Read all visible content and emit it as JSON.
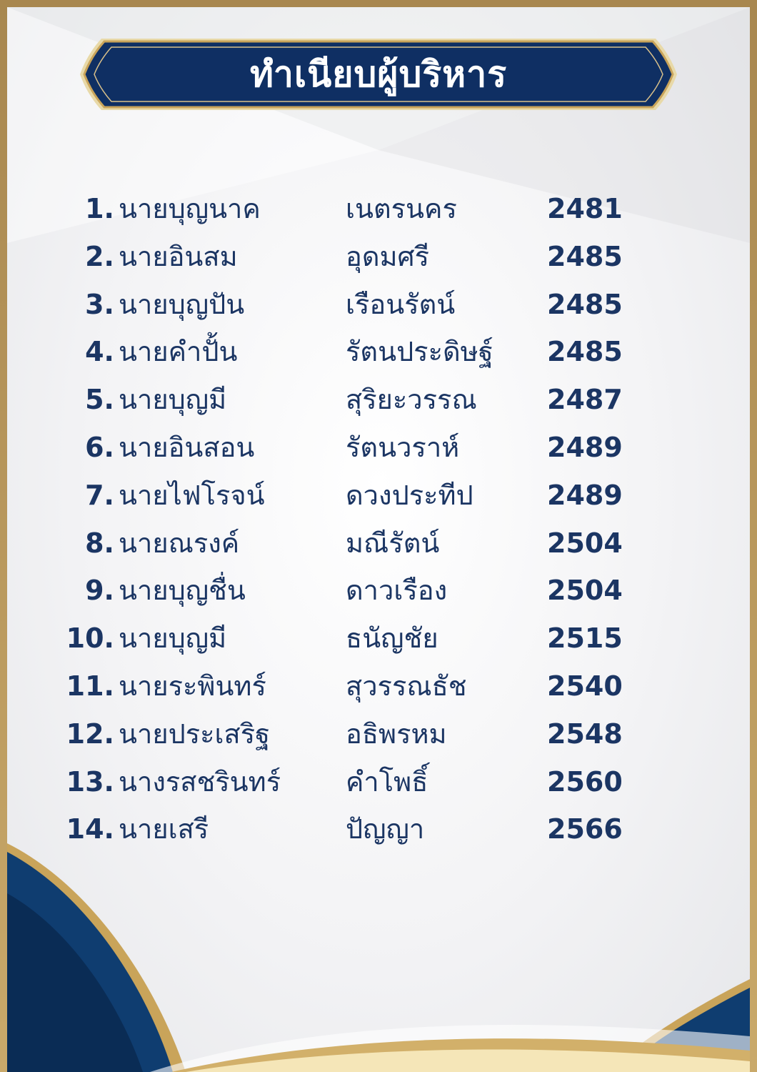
{
  "title": "ทำเนียบผู้บริหาร",
  "colors": {
    "navy": "#0f2f63",
    "gold": "#c9a45a",
    "text": "#1b3563"
  },
  "entries": [
    {
      "no": "1.",
      "first": "นายบุญนาค",
      "last": "เนตรนคร",
      "year": "2481"
    },
    {
      "no": "2.",
      "first": "นายอินสม",
      "last": "อุดมศรี",
      "year": "2485"
    },
    {
      "no": "3.",
      "first": "นายบุญปัน",
      "last": "เรือนรัตน์",
      "year": "2485"
    },
    {
      "no": "4.",
      "first": "นายคำปั้น",
      "last": "รัตนประดิษฐ์",
      "year": "2485"
    },
    {
      "no": "5.",
      "first": "นายบุญมี",
      "last": "สุริยะวรรณ",
      "year": "2487"
    },
    {
      "no": "6.",
      "first": "นายอินสอน",
      "last": "รัตนวราห์",
      "year": "2489"
    },
    {
      "no": "7.",
      "first": "นายไฟโรจน์",
      "last": "ดวงประทีป",
      "year": "2489"
    },
    {
      "no": "8.",
      "first": "นายณรงค์",
      "last": "มณีรัตน์",
      "year": "2504"
    },
    {
      "no": "9.",
      "first": "นายบุญชื่น",
      "last": "ดาวเรือง",
      "year": "2504"
    },
    {
      "no": "10.",
      "first": "นายบุญมี",
      "last": "ธนัญชัย",
      "year": "2515"
    },
    {
      "no": "11.",
      "first": "นายระพินทร์",
      "last": "สุวรรณธัช",
      "year": "2540"
    },
    {
      "no": "12.",
      "first": "นายประเสริฐ",
      "last": "อธิพรหม",
      "year": "2548"
    },
    {
      "no": "13.",
      "first": "นางรสชรินทร์",
      "last": "คำโพธิ์",
      "year": "2560"
    },
    {
      "no": "14.",
      "first": "นายเสรี",
      "last": "ปัญญา",
      "year": "2566"
    }
  ]
}
